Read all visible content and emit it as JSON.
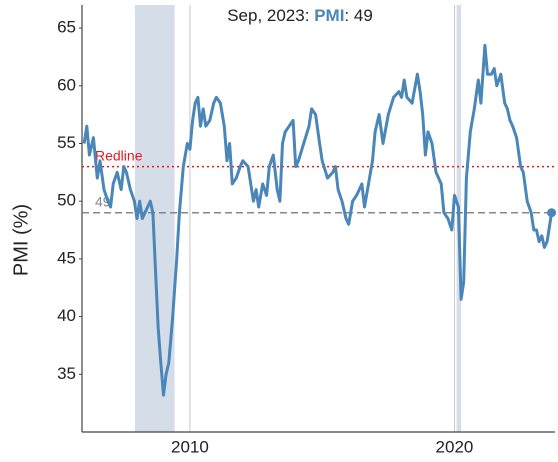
{
  "chart_data": {
    "type": "line",
    "title_prefix": "Sep, 2023:",
    "title_series": "PMI",
    "title_suffix": ": 49",
    "ylabel": "PMI (%)",
    "xlim": [
      2005.92,
      2023.8
    ],
    "ylim": [
      30,
      67
    ],
    "xticks": [
      2010,
      2020
    ],
    "yticks": [
      35,
      40,
      45,
      50,
      55,
      60,
      65
    ],
    "shaded_ranges": [
      [
        2007.92,
        2009.42
      ],
      [
        2020.08,
        2020.25
      ]
    ],
    "reference_lines": [
      {
        "value": 53,
        "label": "Redline",
        "color": "#e41a1c"
      },
      {
        "value": 49,
        "label": "49",
        "color": "#888888"
      }
    ],
    "series": [
      {
        "name": "PMI",
        "color": "#4a86b8",
        "x": [
          2006.0,
          2006.1,
          2006.2,
          2006.35,
          2006.5,
          2006.6,
          2006.75,
          2006.9,
          2007.0,
          2007.1,
          2007.25,
          2007.4,
          2007.5,
          2007.6,
          2007.75,
          2007.9,
          2008.0,
          2008.1,
          2008.2,
          2008.4,
          2008.5,
          2008.6,
          2008.7,
          2008.8,
          2008.9,
          2009.0,
          2009.1,
          2009.2,
          2009.35,
          2009.5,
          2009.6,
          2009.75,
          2009.9,
          2010.0,
          2010.1,
          2010.2,
          2010.3,
          2010.4,
          2010.5,
          2010.6,
          2010.75,
          2010.9,
          2011.0,
          2011.15,
          2011.3,
          2011.4,
          2011.5,
          2011.6,
          2011.75,
          2011.9,
          2012.0,
          2012.2,
          2012.4,
          2012.5,
          2012.6,
          2012.75,
          2012.9,
          2013.0,
          2013.15,
          2013.3,
          2013.4,
          2013.5,
          2013.6,
          2013.75,
          2013.9,
          2014.0,
          2014.1,
          2014.3,
          2014.5,
          2014.6,
          2014.75,
          2014.9,
          2015.0,
          2015.2,
          2015.4,
          2015.5,
          2015.6,
          2015.75,
          2015.9,
          2016.0,
          2016.15,
          2016.3,
          2016.5,
          2016.6,
          2016.75,
          2016.9,
          2017.0,
          2017.15,
          2017.3,
          2017.5,
          2017.7,
          2017.9,
          2018.0,
          2018.1,
          2018.2,
          2018.4,
          2018.6,
          2018.7,
          2018.8,
          2018.9,
          2019.0,
          2019.15,
          2019.3,
          2019.5,
          2019.6,
          2019.75,
          2019.9,
          2020.0,
          2020.15,
          2020.25,
          2020.35,
          2020.45,
          2020.6,
          2020.75,
          2020.9,
          2021.0,
          2021.15,
          2021.25,
          2021.4,
          2021.5,
          2021.6,
          2021.75,
          2021.9,
          2022.0,
          2022.1,
          2022.2,
          2022.35,
          2022.5,
          2022.6,
          2022.75,
          2022.9,
          2023.0,
          2023.1,
          2023.2,
          2023.3,
          2023.4,
          2023.5,
          2023.67
        ],
        "values": [
          55,
          56.5,
          54,
          55.5,
          52,
          53.5,
          51,
          50,
          49.5,
          51.5,
          52.5,
          51,
          53,
          52.5,
          51,
          50,
          48.5,
          50,
          48.5,
          49.5,
          50,
          49,
          44,
          39,
          36,
          33.2,
          35,
          36,
          40,
          45,
          49,
          53,
          55,
          54.5,
          57,
          58.5,
          59,
          56.5,
          58,
          56.5,
          57,
          58.5,
          59,
          58.5,
          56.5,
          53.5,
          55,
          51.5,
          52,
          53,
          53.5,
          53,
          50,
          51,
          49.5,
          51.5,
          50.5,
          53,
          54,
          51,
          50,
          55,
          56,
          56.5,
          57,
          53,
          53.5,
          55,
          56.5,
          58,
          57.5,
          55,
          53.5,
          52,
          52.5,
          53,
          51,
          50,
          48.5,
          48,
          50,
          50.5,
          51.5,
          49.5,
          51.5,
          53.5,
          56,
          57.5,
          55,
          57.5,
          59,
          59.5,
          59,
          60.5,
          59,
          58.5,
          61,
          59.5,
          57.5,
          54,
          56,
          55,
          52.5,
          51.5,
          49,
          48.5,
          47.5,
          50.5,
          49.5,
          41.5,
          43,
          52,
          56,
          58,
          60.5,
          58.5,
          63.5,
          61,
          61,
          61.5,
          60,
          61,
          58.5,
          58,
          57,
          56.5,
          55.5,
          53,
          52.5,
          50,
          49,
          47.5,
          47.5,
          46.5,
          47,
          46,
          46.5,
          49
        ]
      }
    ]
  }
}
